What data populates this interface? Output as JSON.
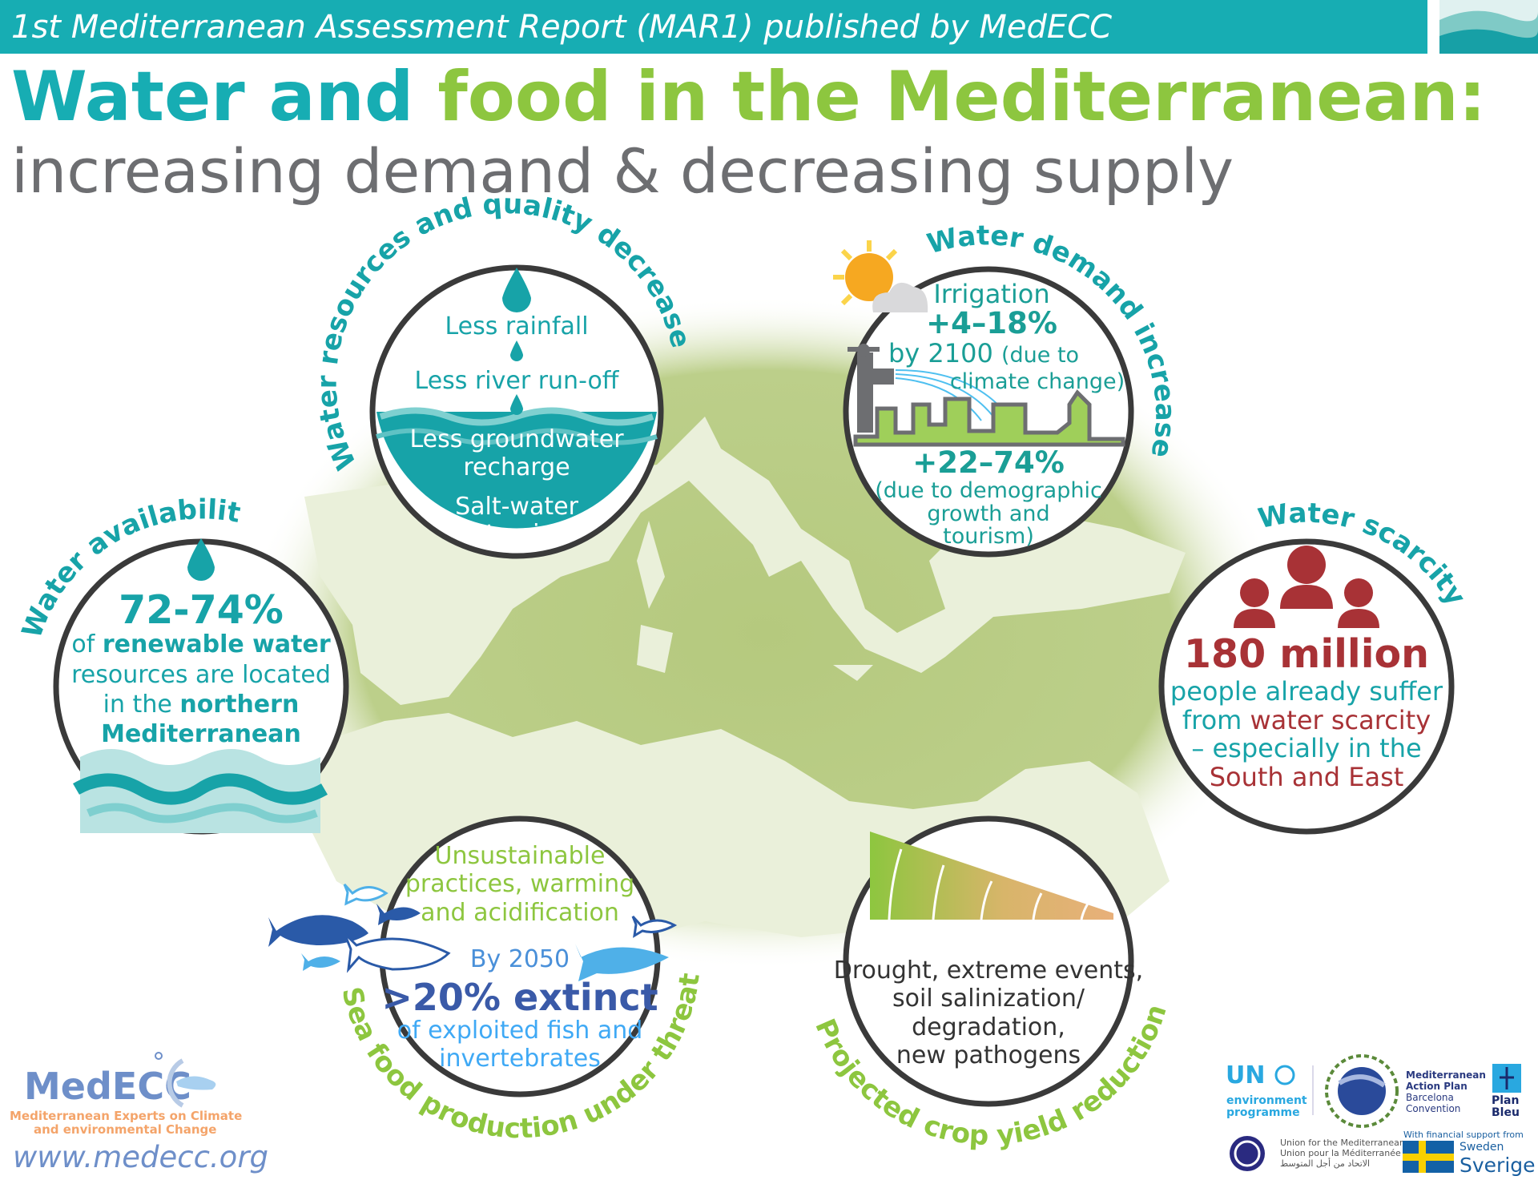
{
  "header": {
    "banner": "1st Mediterranean Assessment Report (MAR1) published by MedECC",
    "title_part1": "Water and",
    "title_part2": "food in the Mediterranean:",
    "subtitle": "increasing demand & decreasing supply"
  },
  "colors": {
    "teal": "#17adb3",
    "green": "#8dc63f",
    "gray": "#6d6e71",
    "red": "#a83236",
    "blue": "#3a5aa8",
    "lightblue": "#3fa9f5"
  },
  "resources": {
    "arc_title": "Water resources and quality decrease",
    "icon": "water-drop-icon",
    "lines": [
      "Less rainfall",
      "Less river run-off",
      "Less groundwater",
      "recharge",
      "Salt-water",
      "intrusion"
    ]
  },
  "demand": {
    "arc_title": "Water demand increase",
    "icons": [
      "sun-cloud-icon",
      "tap-icon",
      "city-skyline-icon"
    ],
    "irrigation": "Irrigation",
    "irrigation_value": "+4–18%",
    "by": "by 2100",
    "cause1": "(due to",
    "cause2": "climate change)",
    "total_value": "+22–74%",
    "cause3": "(due to demographic",
    "cause4": "growth and",
    "cause5": "tourism)"
  },
  "availability": {
    "arc_title": "Water availability",
    "value": "72-74%",
    "l1a": "of",
    "l1b": "renewable water",
    "l2": "resources are located",
    "l3a": "in the",
    "l3b": "northern",
    "l4": "Mediterranean"
  },
  "scarcity": {
    "arc_title": "Water scarcity",
    "icon": "people-icon",
    "value": "180 million",
    "l1": "people already suffer",
    "l2a": "from",
    "l2b": "water scarcity",
    "l3": "– especially in the",
    "l4": "South and East"
  },
  "seafood": {
    "arc_title": "Sea food production under threat",
    "icon": "fish-icon",
    "l1": "Unsustainable",
    "l2": "practices, warming",
    "l3": "and acidification",
    "by": "By 2050",
    "value": ">20% extinct",
    "l4": "of exploited fish and",
    "l5": "invertebrates"
  },
  "crops": {
    "arc_title": "Projected crop yield reduction",
    "icon": "wheat-decline-icon",
    "l1": "Drought, extreme events,",
    "l2": "soil salinization/",
    "l3": "degradation,",
    "l4": "new pathogens"
  },
  "footer": {
    "medecc_logo": "MedECC",
    "medecc_l1": "Mediterranean Experts on Climate",
    "medecc_l2": "and environmental Change",
    "url": "www.medecc.org",
    "un": "UN",
    "un_l1": "environment",
    "un_l2": "programme",
    "map_l1": "Mediterranean",
    "map_l2": "Action Plan",
    "map_l3": "Barcelona",
    "map_l4": "Convention",
    "planbleu_1": "Plan",
    "planbleu_2": "Bleu",
    "ufm_l1": "Union for the Mediterranean",
    "ufm_l2": "Union pour la Méditerranée",
    "ufm_l3": "الاتحاد من أجل المتوسط",
    "support": "With financial support from",
    "sweden": "Sweden",
    "sverige": "Sverige"
  }
}
